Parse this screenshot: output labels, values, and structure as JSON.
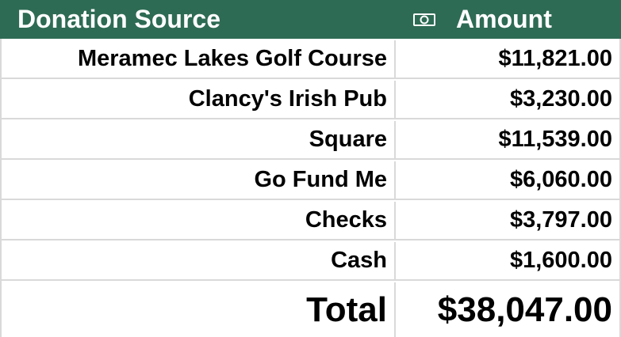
{
  "table": {
    "header": {
      "source_label": "Donation Source",
      "amount_label": "Amount",
      "amount_icon": "money-icon"
    },
    "rows": [
      {
        "source": "Meramec Lakes Golf Course",
        "amount": "$11,821.00"
      },
      {
        "source": "Clancy's Irish Pub",
        "amount": "$3,230.00"
      },
      {
        "source": "Square",
        "amount": "$11,539.00"
      },
      {
        "source": "Go Fund Me",
        "amount": "$6,060.00"
      },
      {
        "source": "Checks",
        "amount": "$3,797.00"
      },
      {
        "source": "Cash",
        "amount": "$1,600.00"
      }
    ],
    "total": {
      "label": "Total",
      "amount": "$38,047.00"
    }
  },
  "colors": {
    "header_bg": "#2e6b54",
    "header_text": "#ffffff",
    "grid": "#d9d9d9",
    "text": "#000000"
  }
}
